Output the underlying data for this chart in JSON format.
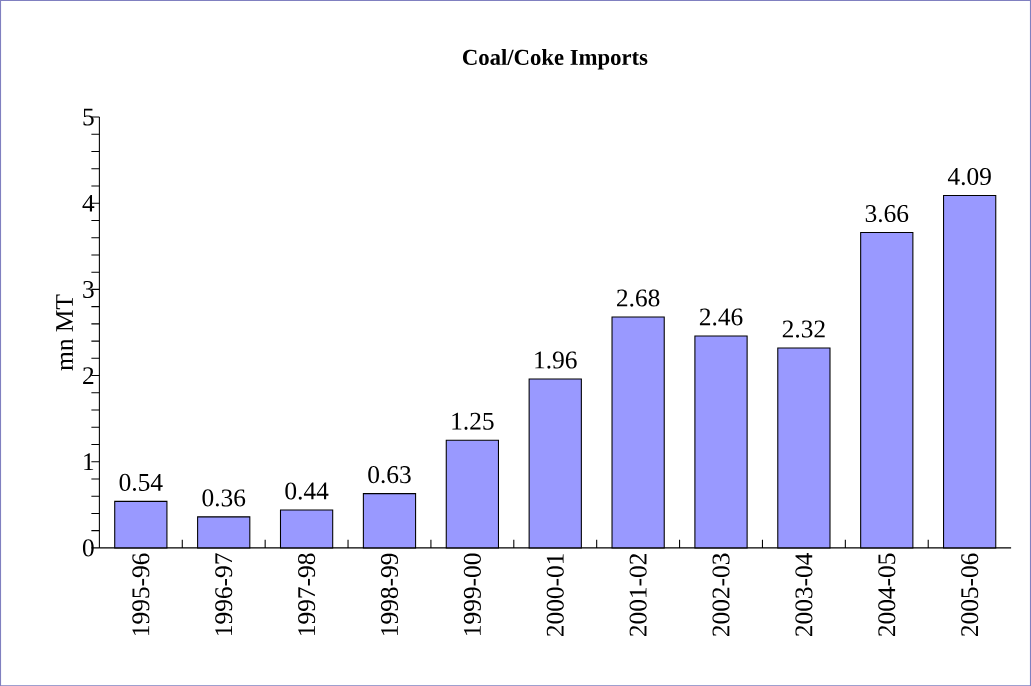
{
  "chart_data": {
    "type": "bar",
    "title": "Coal/Coke Imports",
    "ylabel": "mn MT",
    "categories": [
      "1995-96",
      "1996-97",
      "1997-98",
      "1998-99",
      "1999-00",
      "2000-01",
      "2001-02",
      "2002-03",
      "2003-04",
      "2004-05",
      "2005-06"
    ],
    "values": [
      0.54,
      0.36,
      0.44,
      0.63,
      1.25,
      1.96,
      2.68,
      2.46,
      2.32,
      3.66,
      4.09
    ],
    "color": "#9999ff",
    "ylim": [
      0,
      5
    ],
    "yticks": [
      0,
      1,
      2,
      3,
      4,
      5
    ],
    "data_labels": true,
    "grid": false
  }
}
